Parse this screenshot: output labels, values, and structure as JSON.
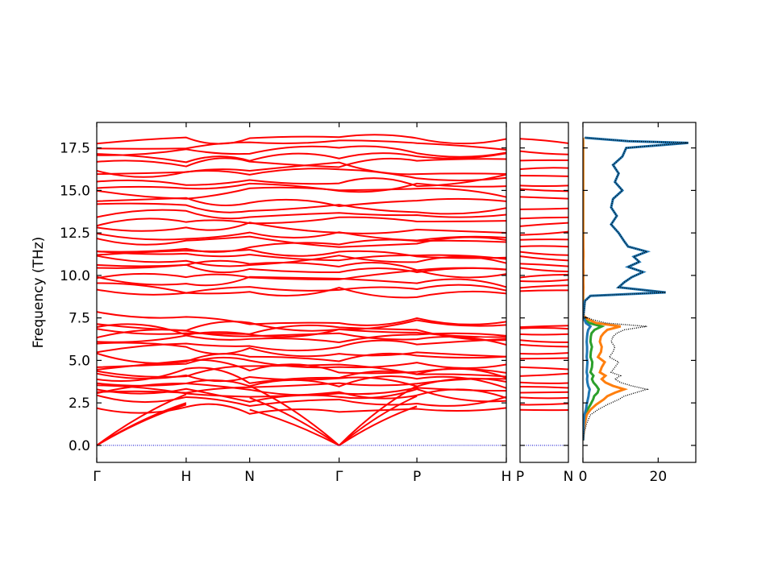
{
  "chart_data": [
    {
      "type": "line",
      "panel": "phonon band structure (main path)",
      "title": "",
      "ylabel": "Frequency (THz)",
      "xlabel": "",
      "ylim": [
        -1.0,
        19.0
      ],
      "yticks": [
        0.0,
        2.5,
        5.0,
        7.5,
        10.0,
        12.5,
        15.0,
        17.5
      ],
      "ytick_labels": [
        "0.0",
        "2.5",
        "5.0",
        "7.5",
        "10.0",
        "12.5",
        "15.0",
        "17.5"
      ],
      "x": [
        0.0,
        1.0,
        1.71,
        2.71,
        3.58,
        4.58
      ],
      "xtick_labels": [
        "Γ",
        "H",
        "N",
        "Γ",
        "P",
        "H"
      ],
      "band_color": "#ff0000",
      "zero_line_color": "#0000cc",
      "acoustic_branches": [
        {
          "x": [
            0.0,
            1.0
          ],
          "y": [
            0.0,
            3.0
          ]
        },
        {
          "x": [
            0.0,
            1.0
          ],
          "y": [
            0.0,
            2.5
          ]
        },
        {
          "x": [
            0.0,
            1.0
          ],
          "y": [
            0.0,
            2.4
          ]
        },
        {
          "x": [
            1.71,
            2.71
          ],
          "y": [
            2.1,
            0.0
          ]
        },
        {
          "x": [
            1.71,
            2.71
          ],
          "y": [
            2.8,
            0.0
          ]
        },
        {
          "x": [
            1.71,
            2.71
          ],
          "y": [
            3.5,
            0.0
          ]
        },
        {
          "x": [
            2.71,
            3.58
          ],
          "y": [
            0.0,
            2.3
          ]
        },
        {
          "x": [
            2.71,
            3.58
          ],
          "y": [
            0.0,
            2.9
          ]
        },
        {
          "x": [
            2.71,
            3.58
          ],
          "y": [
            0.0,
            3.5
          ]
        }
      ],
      "optical_band_levels": [
        2.2,
        2.7,
        2.9,
        3.1,
        3.3,
        3.5,
        3.7,
        3.9,
        4.1,
        4.4,
        4.7,
        5.0,
        5.3,
        5.6,
        5.9,
        6.1,
        6.3,
        6.6,
        6.8,
        7.0,
        7.5,
        9.0,
        9.3,
        9.6,
        10.0,
        10.3,
        10.6,
        10.9,
        11.2,
        11.4,
        11.7,
        12.0,
        12.4,
        12.8,
        13.2,
        13.6,
        14.0,
        14.4,
        14.8,
        15.2,
        15.6,
        16.0,
        16.3,
        16.7,
        17.0,
        17.3,
        17.6,
        17.9
      ]
    },
    {
      "type": "line",
      "panel": "phonon band structure (second path)",
      "ylim": [
        -1.0,
        19.0
      ],
      "x": [
        0.0,
        1.0
      ],
      "xtick_labels": [
        "P",
        "N"
      ],
      "band_color": "#ff0000",
      "band_levels": [
        2.1,
        2.5,
        2.9,
        3.2,
        3.5,
        3.8,
        4.2,
        4.6,
        5.0,
        5.4,
        5.8,
        6.2,
        6.5,
        6.8,
        7.0,
        9.0,
        9.3,
        9.6,
        10.0,
        10.3,
        10.6,
        11.0,
        11.3,
        11.6,
        12.1,
        12.5,
        13.0,
        13.5,
        14.0,
        14.5,
        15.0,
        15.4,
        15.9,
        16.4,
        16.8,
        17.2,
        17.9
      ]
    },
    {
      "type": "line",
      "panel": "projected density of states",
      "xlim": [
        0,
        30
      ],
      "xticks": [
        0,
        20
      ],
      "xtick_labels": [
        "0",
        "20"
      ],
      "ylim": [
        -1.0,
        19.0
      ],
      "freq": [
        0.3,
        0.8,
        1.3,
        1.8,
        2.1,
        2.4,
        2.7,
        2.9,
        3.1,
        3.3,
        3.5,
        3.7,
        3.9,
        4.1,
        4.3,
        4.6,
        4.9,
        5.2,
        5.5,
        5.8,
        6.1,
        6.4,
        6.6,
        6.8,
        7.0,
        7.2,
        7.4,
        7.6,
        8.0,
        8.5,
        8.8,
        9.0,
        9.3,
        9.6,
        9.9,
        10.2,
        10.5,
        10.8,
        11.1,
        11.4,
        11.7,
        12.0,
        12.5,
        13.0,
        13.5,
        14.0,
        14.5,
        15.0,
        15.5,
        16.0,
        16.5,
        17.0,
        17.5,
        17.8,
        17.9,
        18.1
      ],
      "series": [
        {
          "color": "#000000",
          "dotted": true,
          "values": [
            0.1,
            0.4,
            1.0,
            2.0,
            4.0,
            6.5,
            9.5,
            11.0,
            14.0,
            17.0,
            13.0,
            10.0,
            8.5,
            10.0,
            7.5,
            8.5,
            9.5,
            7.0,
            8.0,
            8.5,
            7.5,
            8.0,
            9.0,
            11.0,
            17.0,
            6.0,
            2.5,
            0.3,
            0.4,
            0.6,
            2.0,
            22.0,
            9.5,
            11.0,
            13.0,
            16.0,
            12.0,
            15.0,
            13.5,
            17.0,
            12.0,
            11.0,
            9.5,
            7.5,
            9.0,
            7.5,
            8.0,
            10.5,
            8.5,
            9.5,
            8.0,
            10.5,
            11.5,
            28.0,
            12.0,
            0.5
          ]
        },
        {
          "color": "#1f77b4",
          "dotted": false,
          "values": [
            0.05,
            0.1,
            0.2,
            0.4,
            0.8,
            1.0,
            1.3,
            1.5,
            1.6,
            1.8,
            1.4,
            1.2,
            1.1,
            1.2,
            1.0,
            1.1,
            1.2,
            1.0,
            1.1,
            1.1,
            1.0,
            1.1,
            1.2,
            1.4,
            2.0,
            0.8,
            0.4,
            0.05,
            0.3,
            0.5,
            2.0,
            22.0,
            9.5,
            11.0,
            13.0,
            16.0,
            12.0,
            15.0,
            13.5,
            17.0,
            12.0,
            11.0,
            9.5,
            7.5,
            9.0,
            7.5,
            8.0,
            10.5,
            8.5,
            9.5,
            8.0,
            10.5,
            11.5,
            28.0,
            12.0,
            0.5
          ]
        },
        {
          "color": "#ff7f0e",
          "dotted": false,
          "values": [
            0.05,
            0.2,
            0.5,
            1.0,
            2.0,
            3.5,
            5.5,
            6.5,
            8.5,
            11.0,
            8.0,
            6.0,
            5.0,
            6.0,
            4.5,
            5.0,
            5.8,
            4.0,
            4.8,
            5.0,
            4.5,
            4.8,
            5.5,
            6.5,
            10.0,
            3.5,
            1.5,
            0.2,
            0.05,
            0.05,
            0.05,
            0.1,
            0.15,
            0.1,
            0.1,
            0.15,
            0.1,
            0.1,
            0.15,
            0.15,
            0.1,
            0.1,
            0.05,
            0.05,
            0.05,
            0.05,
            0.05,
            0.05,
            0.05,
            0.05,
            0.05,
            0.05,
            0.05,
            0.05,
            0.05,
            0.0
          ]
        },
        {
          "color": "#2ca02c",
          "dotted": false,
          "values": [
            0.05,
            0.1,
            0.3,
            0.6,
            1.2,
            2.0,
            2.7,
            3.0,
            3.9,
            4.2,
            3.6,
            2.8,
            2.4,
            2.8,
            2.0,
            2.4,
            2.5,
            2.0,
            2.1,
            2.4,
            2.0,
            2.1,
            2.3,
            3.1,
            5.0,
            1.7,
            0.6,
            0.05,
            0.05,
            0.05,
            0.05,
            0.1,
            0.1,
            0.1,
            0.1,
            0.1,
            0.1,
            0.1,
            0.1,
            0.1,
            0.1,
            0.05,
            0.05,
            0.05,
            0.05,
            0.05,
            0.05,
            0.05,
            0.05,
            0.05,
            0.05,
            0.05,
            0.05,
            0.05,
            0.05,
            0.0
          ]
        }
      ]
    }
  ]
}
